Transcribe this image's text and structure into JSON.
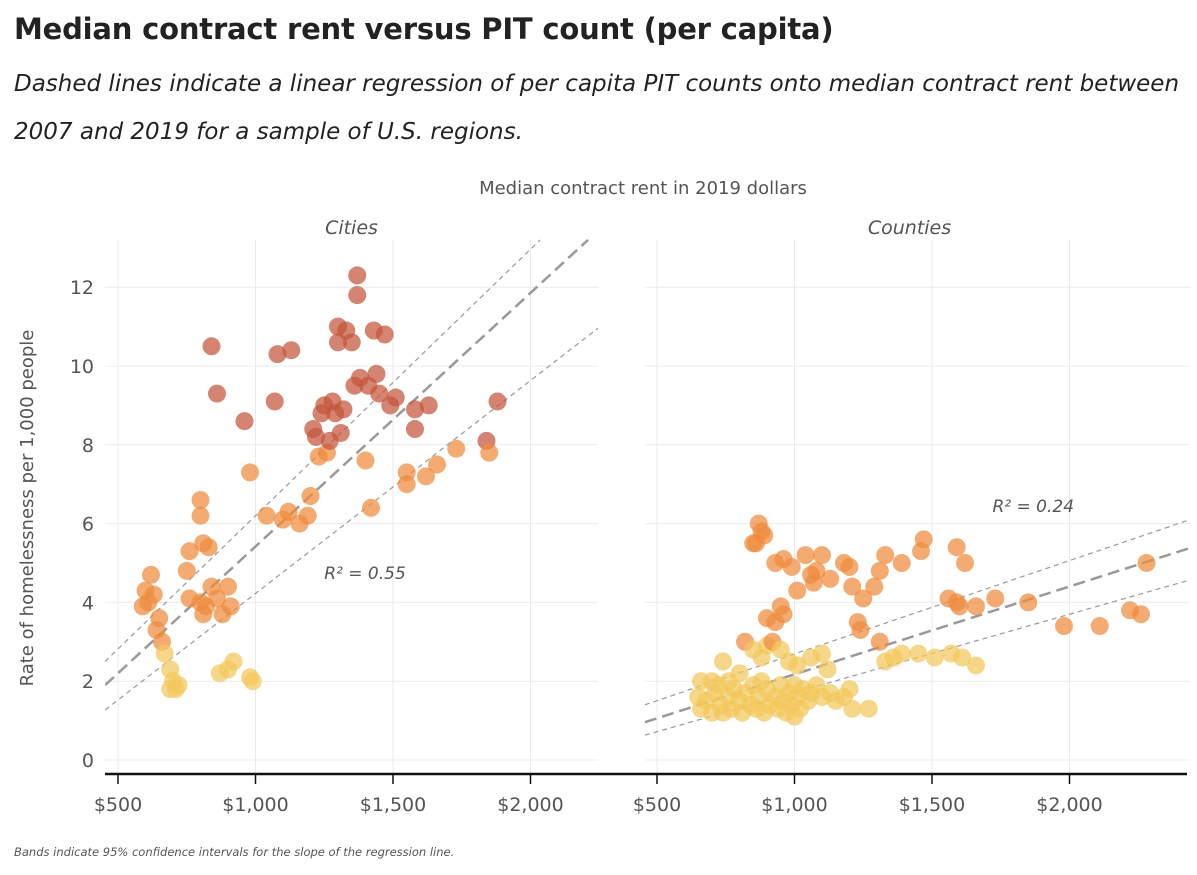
{
  "title": "Median contract rent versus PIT count (per capita)",
  "subtitle": "Dashed lines indicate a linear regression of per capita PIT counts onto median contract rent between 2007 and 2019 for a sample of U.S. regions.",
  "footnote": "Bands indicate 95% confidence intervals for the slope of the regression line.",
  "colors": {
    "high": "#c4553a",
    "mid": "#ef8a3c",
    "low": "#f2c85b",
    "line": "#999999",
    "grid": "#ebebeb",
    "axis": "#111111"
  },
  "chart_data": {
    "type": "scatter",
    "xlabel": "Median contract rent in 2019 dollars",
    "ylabel": "Rate of homelessness per 1,000 people",
    "ylim": [
      0,
      13.2
    ],
    "yticks": [
      0,
      2,
      4,
      6,
      8,
      10,
      12
    ],
    "xlim": [
      455,
      2440
    ],
    "xticks": [
      500,
      1000,
      1500,
      2000
    ],
    "xtick_labels": [
      "$500",
      "$1,000",
      "$1,500",
      "$2,000"
    ],
    "grid": true,
    "panels": [
      {
        "name": "Cities",
        "r2_label": "R² = 0.55",
        "r2_pos": [
          1250,
          4.6
        ],
        "regression": {
          "x": [
            453,
            2209
          ],
          "y": [
            1.9,
            13.2
          ]
        },
        "ci_upper": {
          "x": [
            453,
            2035
          ],
          "y": [
            2.5,
            13.2
          ]
        },
        "ci_lower": {
          "x": [
            453,
            2253
          ],
          "y": [
            1.27,
            11.0
          ]
        },
        "points": [
          [
            620,
            4.7
          ],
          [
            600,
            4.3
          ],
          [
            610,
            4.0
          ],
          [
            590,
            3.9
          ],
          [
            630,
            4.2
          ],
          [
            650,
            3.6
          ],
          [
            640,
            3.3
          ],
          [
            660,
            3.0
          ],
          [
            670,
            2.7
          ],
          [
            690,
            2.3
          ],
          [
            700,
            2.0
          ],
          [
            710,
            1.8
          ],
          [
            720,
            1.9
          ],
          [
            690,
            1.8
          ],
          [
            760,
            4.1
          ],
          [
            750,
            4.8
          ],
          [
            760,
            5.3
          ],
          [
            800,
            4.0
          ],
          [
            810,
            3.7
          ],
          [
            820,
            3.9
          ],
          [
            840,
            4.4
          ],
          [
            860,
            4.1
          ],
          [
            880,
            3.7
          ],
          [
            900,
            4.4
          ],
          [
            910,
            3.9
          ],
          [
            870,
            2.2
          ],
          [
            900,
            2.3
          ],
          [
            920,
            2.5
          ],
          [
            980,
            2.1
          ],
          [
            990,
            2.0
          ],
          [
            800,
            6.6
          ],
          [
            800,
            6.2
          ],
          [
            810,
            5.5
          ],
          [
            830,
            5.4
          ],
          [
            840,
            10.5
          ],
          [
            860,
            9.3
          ],
          [
            960,
            8.6
          ],
          [
            980,
            7.3
          ],
          [
            1040,
            6.2
          ],
          [
            1070,
            9.1
          ],
          [
            1080,
            10.3
          ],
          [
            1100,
            6.1
          ],
          [
            1130,
            10.4
          ],
          [
            1120,
            6.3
          ],
          [
            1160,
            6.0
          ],
          [
            1190,
            6.2
          ],
          [
            1200,
            6.7
          ],
          [
            1210,
            8.4
          ],
          [
            1220,
            8.2
          ],
          [
            1230,
            7.7
          ],
          [
            1240,
            8.8
          ],
          [
            1250,
            9.0
          ],
          [
            1260,
            7.8
          ],
          [
            1270,
            8.1
          ],
          [
            1280,
            9.1
          ],
          [
            1290,
            8.8
          ],
          [
            1300,
            11.0
          ],
          [
            1300,
            10.6
          ],
          [
            1310,
            8.3
          ],
          [
            1320,
            8.9
          ],
          [
            1330,
            10.9
          ],
          [
            1350,
            10.6
          ],
          [
            1360,
            9.5
          ],
          [
            1370,
            11.8
          ],
          [
            1370,
            12.3
          ],
          [
            1380,
            9.7
          ],
          [
            1400,
            7.6
          ],
          [
            1410,
            9.5
          ],
          [
            1420,
            6.4
          ],
          [
            1430,
            10.9
          ],
          [
            1440,
            9.8
          ],
          [
            1450,
            9.3
          ],
          [
            1470,
            10.8
          ],
          [
            1490,
            9.0
          ],
          [
            1510,
            9.2
          ],
          [
            1550,
            7.0
          ],
          [
            1550,
            7.3
          ],
          [
            1580,
            8.9
          ],
          [
            1580,
            8.4
          ],
          [
            1620,
            7.2
          ],
          [
            1630,
            9.0
          ],
          [
            1660,
            7.5
          ],
          [
            1730,
            7.9
          ],
          [
            1840,
            8.1
          ],
          [
            1850,
            7.8
          ],
          [
            1880,
            9.1
          ]
        ]
      },
      {
        "name": "Counties",
        "r2_label": "R² = 0.24",
        "r2_pos": [
          1720,
          6.3
        ],
        "regression": {
          "x": [
            456,
            2438
          ],
          "y": [
            0.96,
            5.38
          ]
        },
        "ci_upper": {
          "x": [
            456,
            2438
          ],
          "y": [
            1.4,
            6.1
          ]
        },
        "ci_lower": {
          "x": [
            456,
            2438
          ],
          "y": [
            0.63,
            4.57
          ]
        },
        "points": [
          [
            850,
            5.5
          ],
          [
            870,
            6.0
          ],
          [
            880,
            5.8
          ],
          [
            890,
            5.7
          ],
          [
            860,
            5.5
          ],
          [
            930,
            5.0
          ],
          [
            960,
            5.1
          ],
          [
            990,
            4.9
          ],
          [
            1010,
            4.3
          ],
          [
            1040,
            5.2
          ],
          [
            1060,
            4.7
          ],
          [
            1070,
            4.5
          ],
          [
            1080,
            4.8
          ],
          [
            1100,
            5.2
          ],
          [
            1130,
            4.6
          ],
          [
            1180,
            5.0
          ],
          [
            1200,
            4.9
          ],
          [
            1210,
            4.4
          ],
          [
            1250,
            4.1
          ],
          [
            1290,
            4.4
          ],
          [
            1310,
            4.8
          ],
          [
            1330,
            5.2
          ],
          [
            1390,
            5.0
          ],
          [
            1460,
            5.3
          ],
          [
            1470,
            5.6
          ],
          [
            1560,
            4.1
          ],
          [
            1590,
            5.4
          ],
          [
            1620,
            5.0
          ],
          [
            1590,
            4.0
          ],
          [
            1600,
            3.9
          ],
          [
            1660,
            3.9
          ],
          [
            1730,
            4.1
          ],
          [
            1850,
            4.0
          ],
          [
            1980,
            3.4
          ],
          [
            2110,
            3.4
          ],
          [
            2220,
            3.8
          ],
          [
            2260,
            3.7
          ],
          [
            2280,
            5.0
          ],
          [
            1230,
            3.5
          ],
          [
            1240,
            3.3
          ],
          [
            1310,
            3.0
          ],
          [
            1330,
            2.5
          ],
          [
            1360,
            2.6
          ],
          [
            1390,
            2.7
          ],
          [
            1450,
            2.7
          ],
          [
            1510,
            2.6
          ],
          [
            1570,
            2.7
          ],
          [
            1610,
            2.6
          ],
          [
            1660,
            2.4
          ],
          [
            950,
            3.9
          ],
          [
            930,
            3.5
          ],
          [
            900,
            3.6
          ],
          [
            960,
            3.7
          ],
          [
            820,
            3.0
          ],
          [
            850,
            2.8
          ],
          [
            880,
            2.6
          ],
          [
            900,
            2.9
          ],
          [
            920,
            3.0
          ],
          [
            950,
            2.8
          ],
          [
            980,
            2.5
          ],
          [
            1010,
            2.4
          ],
          [
            1060,
            2.6
          ],
          [
            1100,
            2.7
          ],
          [
            740,
            2.5
          ],
          [
            700,
            2.0
          ],
          [
            800,
            2.2
          ],
          [
            1120,
            2.3
          ],
          [
            650,
            1.6
          ],
          [
            660,
            1.3
          ],
          [
            680,
            1.5
          ],
          [
            700,
            1.2
          ],
          [
            710,
            1.7
          ],
          [
            730,
            1.4
          ],
          [
            740,
            1.2
          ],
          [
            760,
            1.6
          ],
          [
            770,
            1.3
          ],
          [
            780,
            1.8
          ],
          [
            800,
            1.5
          ],
          [
            810,
            1.2
          ],
          [
            820,
            1.7
          ],
          [
            840,
            1.4
          ],
          [
            850,
            1.9
          ],
          [
            860,
            1.3
          ],
          [
            870,
            1.6
          ],
          [
            890,
            1.2
          ],
          [
            900,
            1.8
          ],
          [
            910,
            1.4
          ],
          [
            930,
            1.6
          ],
          [
            940,
            1.3
          ],
          [
            950,
            1.9
          ],
          [
            960,
            1.5
          ],
          [
            970,
            1.2
          ],
          [
            980,
            1.7
          ],
          [
            990,
            1.4
          ],
          [
            1000,
            1.1
          ],
          [
            1000,
            1.9
          ],
          [
            1010,
            1.6
          ],
          [
            1020,
            1.3
          ],
          [
            1030,
            1.8
          ],
          [
            1050,
            1.5
          ],
          [
            1060,
            1.7
          ],
          [
            1080,
            1.9
          ],
          [
            1100,
            1.6
          ],
          [
            1130,
            1.7
          ],
          [
            1150,
            1.5
          ],
          [
            1180,
            1.6
          ],
          [
            1200,
            1.8
          ],
          [
            1210,
            1.3
          ],
          [
            1270,
            1.3
          ],
          [
            660,
            2.0
          ],
          [
            720,
            1.9
          ],
          [
            760,
            2.0
          ],
          [
            880,
            2.0
          ]
        ]
      }
    ]
  }
}
